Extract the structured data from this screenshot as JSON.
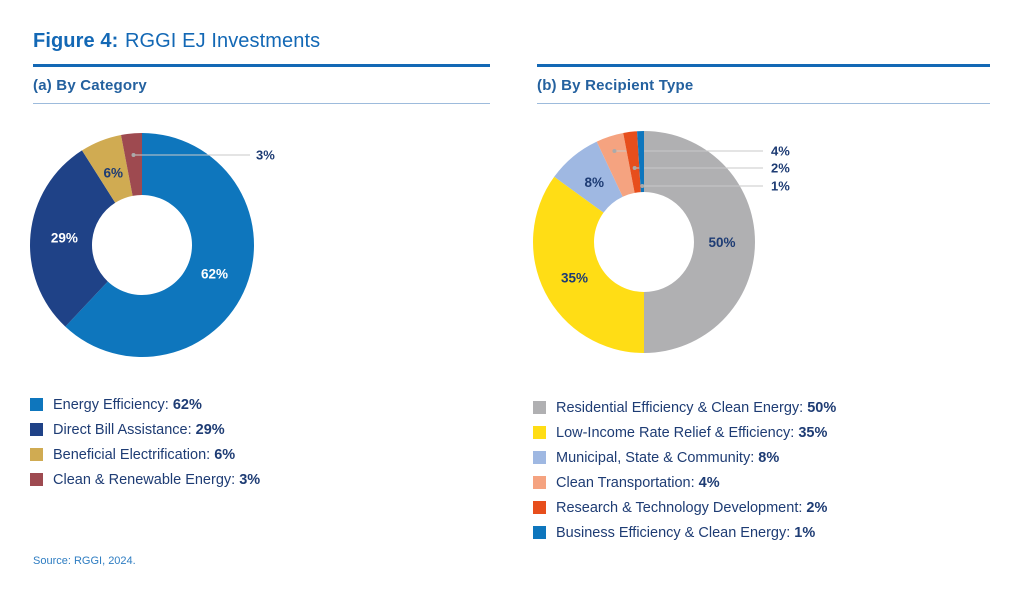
{
  "title": {
    "prefix": "Figure 4:",
    "rest": "RGGI EJ Investments"
  },
  "source": "Source: RGGI, 2024.",
  "accent_colors": {
    "title_blue": "#1368b5",
    "section_header_blue": "#24619f",
    "text_navy": "#1e3c74",
    "thin_rule_blue": "#9dbbdc",
    "source_blue": "#2e7dc2",
    "leader_line_gray": "#c9c9c9"
  },
  "chart_data": [
    {
      "type": "pie",
      "subtype": "donut",
      "title": "(a) By Category",
      "labels": [
        "Energy Efficiency",
        "Direct Bill Assistance",
        "Beneficial Electrification",
        "Clean & Renewable Energy"
      ],
      "values": [
        62,
        29,
        6,
        3
      ],
      "unit": "%",
      "colors": [
        "#0e76bd",
        "#1f4287",
        "#d0ab52",
        "#9e4a50"
      ],
      "pct_label_colors": [
        "#ffffff",
        "#ffffff",
        "#1e3c74",
        "#1e3c74"
      ],
      "label_placement": [
        "inside",
        "inside",
        "inside",
        "outside"
      ],
      "start_angle_deg": 0,
      "direction": "clockwise",
      "legend_position": "bottom"
    },
    {
      "type": "pie",
      "subtype": "donut",
      "title": "(b) By Recipient Type",
      "labels": [
        "Residential Efficiency & Clean Energy",
        "Low-Income Rate Relief & Efficiency",
        "Municipal, State & Community",
        "Clean Transportation",
        "Research & Technology Development",
        "Business Efficiency & Clean Energy"
      ],
      "values": [
        50,
        35,
        8,
        4,
        2,
        1
      ],
      "unit": "%",
      "colors": [
        "#b0b0b2",
        "#ffdd15",
        "#9fb8e2",
        "#f5a380",
        "#e74e1c",
        "#0e76bd"
      ],
      "pct_label_colors": [
        "#1e3c74",
        "#1e3c74",
        "#1e3c74",
        "#1e3c74",
        "#1e3c74",
        "#1e3c74"
      ],
      "label_placement": [
        "inside",
        "inside",
        "inside",
        "outside",
        "outside",
        "outside"
      ],
      "start_angle_deg": 0,
      "direction": "clockwise",
      "legend_position": "bottom"
    }
  ]
}
